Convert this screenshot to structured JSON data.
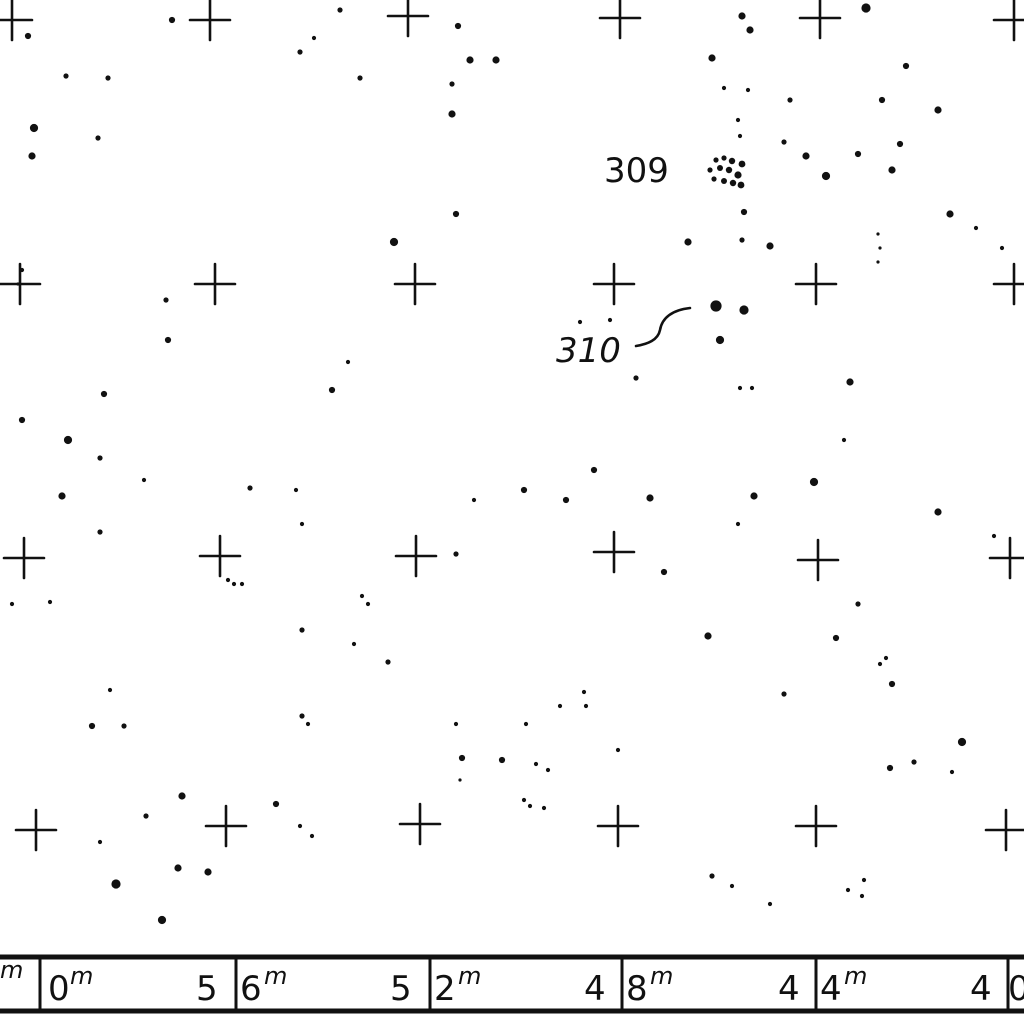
{
  "map": {
    "object_labels": [
      {
        "id": "obj-309",
        "text": "309"
      },
      {
        "id": "obj-310",
        "text": "310"
      }
    ],
    "ra_scale": {
      "divisions": [
        {
          "minutes_left": "0",
          "minutes_right": ""
        },
        {
          "minutes_left": "5",
          "minutes_right": "6"
        },
        {
          "minutes_left": "5",
          "minutes_right": "2"
        },
        {
          "minutes_left": "4",
          "minutes_right": "8"
        },
        {
          "minutes_left": "4",
          "minutes_right": "4"
        },
        {
          "minutes_left": "4",
          "minutes_right": "0"
        }
      ],
      "unit_superscript": "m"
    },
    "colors": {
      "ink": "#111111",
      "paper": "#ffffff"
    }
  }
}
